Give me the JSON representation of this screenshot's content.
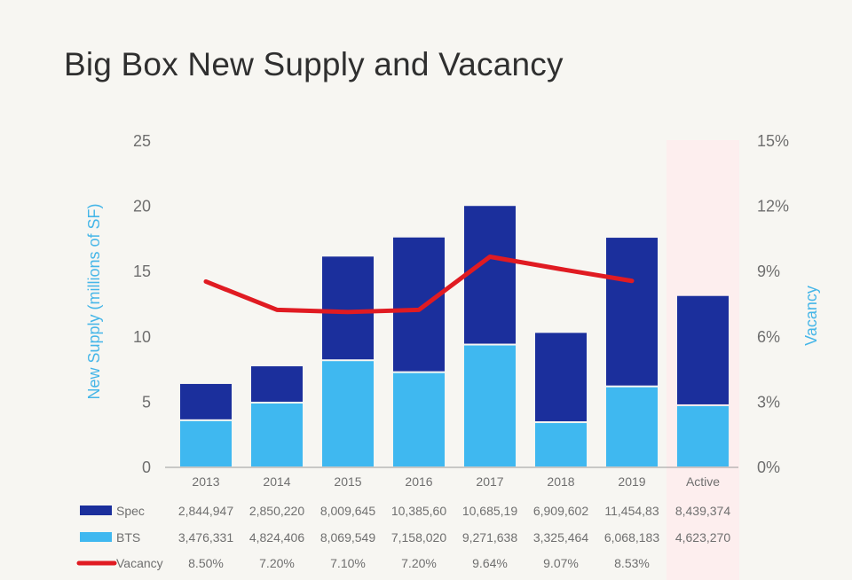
{
  "chart_data": {
    "type": "bar",
    "title": "Big Box New Supply and Vacancy",
    "ylabel": "New Supply (millions of SF)",
    "y2label": "Vacancy",
    "ylim": [
      0,
      25
    ],
    "y2lim": [
      0,
      15
    ],
    "yticks": [
      "0",
      "5",
      "10",
      "15",
      "20",
      "25"
    ],
    "y2ticks": [
      "0%",
      "3%",
      "6%",
      "9%",
      "12%",
      "15%"
    ],
    "categories": [
      "2013",
      "2014",
      "2015",
      "2016",
      "2017",
      "2018",
      "2019",
      "Active"
    ],
    "highlight_category": "Active",
    "stacked": true,
    "series": [
      {
        "name": "BTS",
        "kind": "bar",
        "color": "#3fb8f0",
        "values": [
          3.476331,
          4.824406,
          8.069549,
          7.15802,
          9.271638,
          3.325464,
          6.068183,
          4.62327
        ],
        "table_values": [
          "3,476,331",
          "4,824,406",
          "8,069,549",
          "7,158,020",
          "9,271,638",
          "3,325,464",
          "6,068,183",
          "4,623,270"
        ]
      },
      {
        "name": "Spec",
        "kind": "bar",
        "color": "#1b2f9c",
        "values": [
          2.844947,
          2.85022,
          8.009645,
          10.3856,
          10.68519,
          6.909602,
          11.45483,
          8.439374
        ],
        "table_values": [
          "2,844,947",
          "2,850,220",
          "8,009,645",
          "10,385,60",
          "10,685,19",
          "6,909,602",
          "11,454,83",
          "8,439,374"
        ]
      },
      {
        "name": "Vacancy",
        "kind": "line",
        "axis": "right",
        "color": "#e01b22",
        "values": [
          8.5,
          7.2,
          7.1,
          7.2,
          9.64,
          9.07,
          8.53,
          null
        ],
        "table_values": [
          "8.50%",
          "7.20%",
          "7.10%",
          "7.20%",
          "9.64%",
          "9.07%",
          "8.53%",
          ""
        ]
      }
    ],
    "table_rows": [
      "Spec",
      "BTS",
      "Vacancy"
    ],
    "grid": false,
    "legend": "data table below chart"
  },
  "colors": {
    "text": "#6f6f6f",
    "axis_title": "#46b6e8",
    "highlight": "#fdeeee",
    "baseline": "#9a9a9a"
  }
}
